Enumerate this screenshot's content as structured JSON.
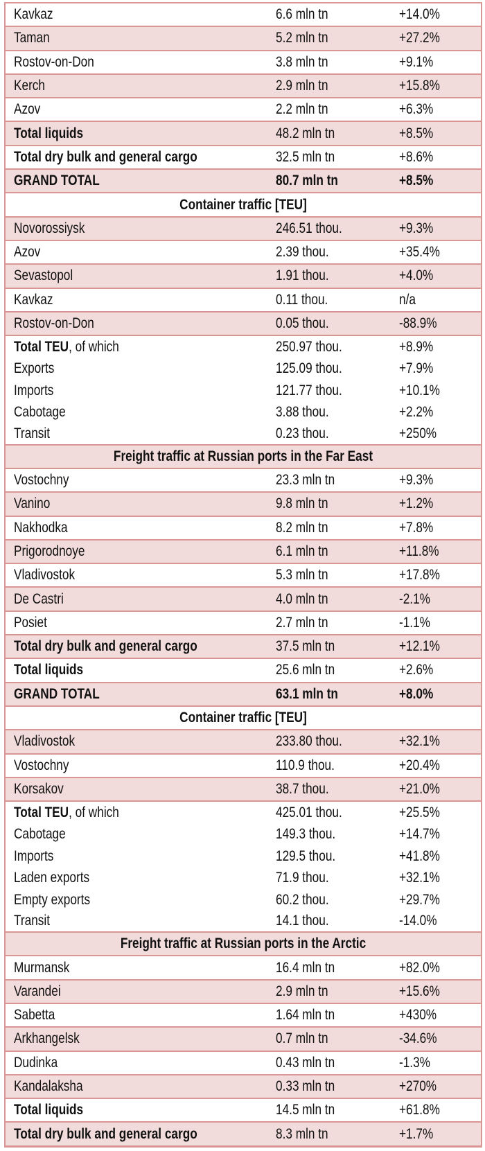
{
  "colors": {
    "pink_row": "#f2dbdb",
    "border": "#d99694"
  },
  "rows": [
    {
      "type": "data",
      "label": "Kavkaz",
      "value": "6.6 mln tn",
      "change": "+14.0%"
    },
    {
      "type": "data",
      "label": "Taman",
      "value": "5.2 mln tn",
      "change": "+27.2%"
    },
    {
      "type": "data",
      "label": "Rostov-on-Don",
      "value": "3.8 mln tn",
      "change": "+9.1%"
    },
    {
      "type": "data",
      "label": "Kerch",
      "value": "2.9 mln tn",
      "change": "+15.8%"
    },
    {
      "type": "data",
      "label": "Azov",
      "value": "2.2 mln tn",
      "change": "+6.3%"
    },
    {
      "type": "total",
      "label": "Total liquids",
      "value": "48.2 mln tn",
      "change": "+8.5%"
    },
    {
      "type": "total",
      "label": "Total dry bulk and general cargo",
      "value": "32.5 mln tn",
      "change": "+8.6%"
    },
    {
      "type": "grand",
      "label": "GRAND TOTAL",
      "value": "80.7 mln tn",
      "change": "+8.5%"
    },
    {
      "type": "header",
      "label": "Container traffic [TEU]"
    },
    {
      "type": "data",
      "label": "Novorossiysk",
      "value": "246.51 thou.",
      "change": "+9.3%"
    },
    {
      "type": "data",
      "label": "Azov",
      "value": "2.39 thou.",
      "change": "+35.4%"
    },
    {
      "type": "data",
      "label": "Sevastopol",
      "value": "1.91 thou.",
      "change": "+4.0%"
    },
    {
      "type": "data",
      "label": "Kavkaz",
      "value": "0.11 thou.",
      "change": "n/a"
    },
    {
      "type": "data",
      "label": "Rostov-on-Don",
      "value": "0.05 thou.",
      "change": "-88.9%"
    },
    {
      "type": "teu",
      "label": "Total TEU",
      "label_suffix": ", of which",
      "value": "250.97 thou.",
      "change": "+8.9%"
    },
    {
      "type": "sub",
      "label": "Exports",
      "value": "125.09 thou.",
      "change": "+7.9%"
    },
    {
      "type": "sub",
      "label": "Imports",
      "value": "121.77 thou.",
      "change": "+10.1%"
    },
    {
      "type": "sub",
      "label": "Cabotage",
      "value": "3.88 thou.",
      "change": "+2.2%"
    },
    {
      "type": "sublast",
      "label": "Transit",
      "value": "0.23 thou.",
      "change": "+250%"
    },
    {
      "type": "header",
      "label": "Freight traffic at Russian ports in the Far East"
    },
    {
      "type": "data",
      "label": "Vostochny",
      "value": "23.3 mln tn",
      "change": "+9.3%"
    },
    {
      "type": "data",
      "label": "Vanino",
      "value": "9.8 mln tn",
      "change": "+1.2%"
    },
    {
      "type": "data",
      "label": "Nakhodka",
      "value": "8.2 mln tn",
      "change": "+7.8%"
    },
    {
      "type": "data",
      "label": "Prigorodnoye",
      "value": "6.1 mln tn",
      "change": "+11.8%"
    },
    {
      "type": "data",
      "label": "Vladivostok",
      "value": "5.3 mln tn",
      "change": "+17.8%"
    },
    {
      "type": "data",
      "label": "De Castri",
      "value": "4.0 mln tn",
      "change": "-2.1%"
    },
    {
      "type": "data",
      "label": "Posiet",
      "value": "2.7 mln tn",
      "change": "-1.1%"
    },
    {
      "type": "total",
      "label": "Total dry bulk and general cargo",
      "value": "37.5 mln tn",
      "change": "+12.1%"
    },
    {
      "type": "total",
      "label": "Total liquids",
      "value": "25.6 mln tn",
      "change": "+2.6%"
    },
    {
      "type": "grand",
      "label": "GRAND TOTAL",
      "value": "63.1 mln tn",
      "change": "+8.0%"
    },
    {
      "type": "header",
      "label": "Container traffic [TEU]"
    },
    {
      "type": "data",
      "label": "Vladivostok",
      "value": "233.80 thou.",
      "change": "+32.1%"
    },
    {
      "type": "data",
      "label": "Vostochny",
      "value": "110.9 thou.",
      "change": "+20.4%"
    },
    {
      "type": "data",
      "label": "Korsakov",
      "value": "38.7 thou.",
      "change": "+21.0%"
    },
    {
      "type": "teu",
      "label": "Total TEU",
      "label_suffix": ", of which",
      "value": "425.01 thou.",
      "change": "+25.5%"
    },
    {
      "type": "sub",
      "label": "Cabotage",
      "value": "149.3 thou.",
      "change": "+14.7%"
    },
    {
      "type": "sub",
      "label": "Imports",
      "value": "129.5 thou.",
      "change": "+41.8%"
    },
    {
      "type": "sub",
      "label": "Laden exports",
      "value": "71.9 thou.",
      "change": "+32.1%"
    },
    {
      "type": "sub",
      "label": "Empty exports",
      "value": "60.2 thou.",
      "change": "+29.7%"
    },
    {
      "type": "sublast",
      "label": "Transit",
      "value": "14.1 thou.",
      "change": "-14.0%"
    },
    {
      "type": "header",
      "label": "Freight traffic at Russian ports in the Arctic"
    },
    {
      "type": "data",
      "label": "Murmansk",
      "value": "16.4 mln tn",
      "change": "+82.0%"
    },
    {
      "type": "data",
      "label": "Varandei",
      "value": "2.9 mln tn",
      "change": "+15.6%"
    },
    {
      "type": "data",
      "label": "Sabetta",
      "value": "1.64 mln tn",
      "change": "+430%"
    },
    {
      "type": "data",
      "label": "Arkhangelsk",
      "value": "0.7 mln tn",
      "change": "-34.6%"
    },
    {
      "type": "data",
      "label": "Dudinka",
      "value": "0.43 mln tn",
      "change": "-1.3%"
    },
    {
      "type": "data",
      "label": "Kandalaksha",
      "value": "0.33 mln tn",
      "change": "+270%"
    },
    {
      "type": "total",
      "label": "Total liquids",
      "value": "14.5 mln tn",
      "change": "+61.8%"
    },
    {
      "type": "total",
      "label": "Total dry bulk and general cargo",
      "value": "8.3 mln tn",
      "change": "+1.7%"
    }
  ]
}
